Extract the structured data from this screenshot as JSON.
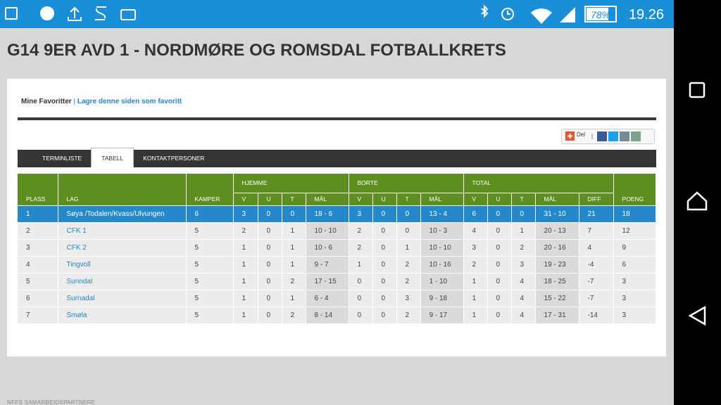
{
  "status_bar": {
    "battery": "78%",
    "time": "19.26"
  },
  "header": {
    "title": "G14 9ER AVD 1 - NORDMØRE OG ROMSDAL FOTBALLKRETS"
  },
  "favorites": {
    "label": "Mine Favoritter",
    "separator": "|",
    "link": "Lagre denne siden som favoritt"
  },
  "share": {
    "label": "Del"
  },
  "tabs": [
    "TERMINLISTE",
    "TABELL",
    "KONTAKTPERSONER"
  ],
  "table": {
    "header_top": [
      "PLASS",
      "LAG",
      "KAMPER",
      "HJEMME",
      "BORTE",
      "TOTAL",
      "POENG"
    ],
    "header_sub": [
      "V",
      "U",
      "T",
      "MÅL",
      "V",
      "U",
      "T",
      "MÅL",
      "V",
      "U",
      "T",
      "MÅL",
      "DIFF"
    ],
    "rows": [
      [
        1,
        "Søya /Todalen/Kvass/Ulvungen",
        6,
        3,
        0,
        0,
        "18 - 6",
        3,
        0,
        0,
        "13 - 4",
        6,
        0,
        0,
        "31 - 10",
        21,
        18
      ],
      [
        2,
        "CFK 1",
        5,
        2,
        0,
        1,
        "10 - 10",
        2,
        0,
        0,
        "10 - 3",
        4,
        0,
        1,
        "20 - 13",
        7,
        12
      ],
      [
        3,
        "CFK 2",
        5,
        1,
        0,
        1,
        "10 - 6",
        2,
        0,
        1,
        "10 - 10",
        3,
        0,
        2,
        "20 - 16",
        4,
        9
      ],
      [
        4,
        "Tingvoll",
        5,
        1,
        0,
        1,
        "9 - 7",
        1,
        0,
        2,
        "10 - 16",
        2,
        0,
        3,
        "19 - 23",
        -4,
        6
      ],
      [
        5,
        "Sunndal",
        5,
        1,
        0,
        2,
        "17 - 15",
        0,
        0,
        2,
        "1 - 10",
        1,
        0,
        4,
        "18 - 25",
        -7,
        3
      ],
      [
        6,
        "Surnadal",
        5,
        1,
        0,
        1,
        "6 - 4",
        0,
        0,
        3,
        "9 - 18",
        1,
        0,
        4,
        "15 - 22",
        -7,
        3
      ],
      [
        7,
        "Smøla",
        5,
        1,
        0,
        2,
        "8 - 14",
        0,
        0,
        2,
        "9 - 17",
        1,
        0,
        4,
        "17 - 31",
        -14,
        3
      ]
    ]
  },
  "footer": {
    "text": "NFFS SAMARBEIDSPARTNERE"
  }
}
